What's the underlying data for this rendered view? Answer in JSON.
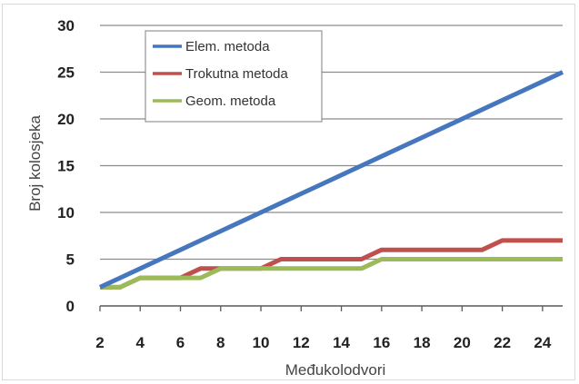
{
  "chart_data": {
    "type": "line",
    "title": "",
    "xlabel": "Međukolodvori",
    "ylabel": "Broj kolosjeka",
    "xlim": [
      2,
      25
    ],
    "ylim": [
      0,
      30
    ],
    "x_ticks": [
      2,
      4,
      6,
      8,
      10,
      12,
      14,
      16,
      18,
      20,
      22,
      24
    ],
    "y_ticks": [
      0,
      5,
      10,
      15,
      20,
      25,
      30
    ],
    "grid": "horizontal",
    "legend_position": "top-left",
    "x": [
      2,
      3,
      4,
      5,
      6,
      7,
      8,
      9,
      10,
      11,
      12,
      13,
      14,
      15,
      16,
      17,
      18,
      19,
      20,
      21,
      22,
      23,
      24,
      25
    ],
    "series": [
      {
        "name": "Elem. metoda",
        "color": "#4677be",
        "values": [
          2,
          3,
          4,
          5,
          6,
          7,
          8,
          9,
          10,
          11,
          12,
          13,
          14,
          15,
          16,
          17,
          18,
          19,
          20,
          21,
          22,
          23,
          24,
          25
        ]
      },
      {
        "name": "Trokutna metoda",
        "color": "#c0504d",
        "values": [
          2,
          2,
          3,
          3,
          3,
          4,
          4,
          4,
          4,
          5,
          5,
          5,
          5,
          5,
          6,
          6,
          6,
          6,
          6,
          6,
          7,
          7,
          7,
          7
        ]
      },
      {
        "name": "Geom. metoda",
        "color": "#9bbb59",
        "values": [
          2,
          2,
          3,
          3,
          3,
          3,
          4,
          4,
          4,
          4,
          4,
          4,
          4,
          4,
          5,
          5,
          5,
          5,
          5,
          5,
          5,
          5,
          5,
          5
        ]
      }
    ]
  }
}
